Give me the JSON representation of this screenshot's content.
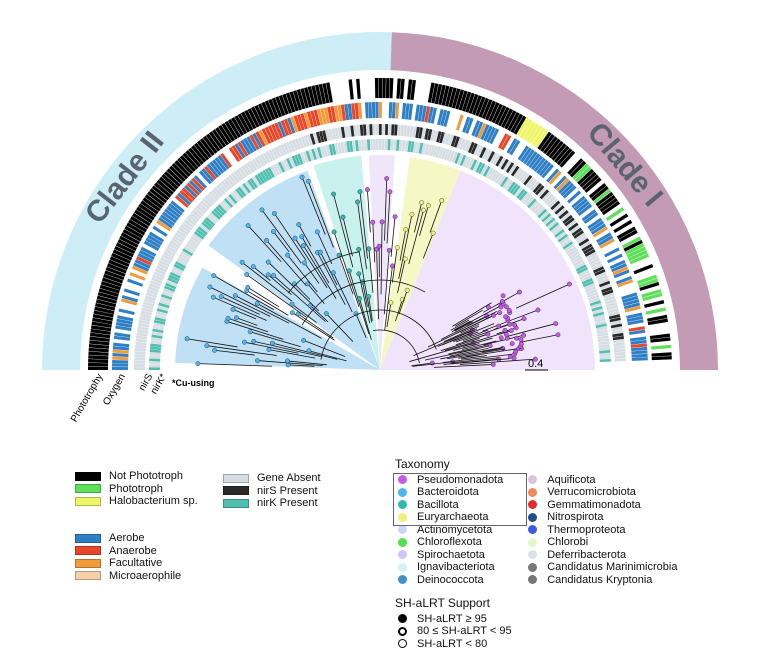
{
  "clades": [
    {
      "label": "Clade II",
      "color": "#cdeef7"
    },
    {
      "label": "Clade I",
      "color": "#c49bb4"
    }
  ],
  "ring_labels": [
    "Phototrophy",
    "Oxygen",
    "nirS",
    "nirK*"
  ],
  "note": "*Cu-using",
  "scale_bar": "0.4",
  "phototrophy_legend": [
    {
      "label": "Not Phototroph",
      "color": "#000000"
    },
    {
      "label": "Phototroph",
      "color": "#5ee05a"
    },
    {
      "label": "Halobacterium sp.",
      "color": "#eef566"
    }
  ],
  "oxygen_legend": [
    {
      "label": "Aerobe",
      "color": "#2f7fc6"
    },
    {
      "label": "Anaerobe",
      "color": "#e8472a"
    },
    {
      "label": "Facultative",
      "color": "#f39a3a"
    },
    {
      "label": "Microaerophile",
      "color": "#f7cfa6"
    }
  ],
  "gene_legend": [
    {
      "label": "Gene Absent",
      "color": "#d6dde3"
    },
    {
      "label": "nirS Present",
      "color": "#2a2a2a"
    },
    {
      "label": "nirK Present",
      "color": "#4fbfb0"
    }
  ],
  "taxonomy": {
    "title": "Taxonomy",
    "items": [
      {
        "label": "Pseudomonadota",
        "color": "#c45ae8"
      },
      {
        "label": "Bacteroidota",
        "color": "#4cb8f0"
      },
      {
        "label": "Bacillota",
        "color": "#34b8b0"
      },
      {
        "label": "Euryarchaeota",
        "color": "#eef07a"
      },
      {
        "label": "Actinomycetota",
        "color": "#c9d6f7"
      },
      {
        "label": "Chloroflexota",
        "color": "#4ee04e"
      },
      {
        "label": "Spirochaetota",
        "color": "#d3c2f7"
      },
      {
        "label": "Ignavibacteriota",
        "color": "#d2f2f7"
      },
      {
        "label": "Deinococcota",
        "color": "#3f93c4"
      },
      {
        "label": "Aquificota",
        "color": "#dcc4dc"
      },
      {
        "label": "Verrucomicrobiota",
        "color": "#f08a5a"
      },
      {
        "label": "Gemmatimonadota",
        "color": "#e82a2a"
      },
      {
        "label": "Nitrospirota",
        "color": "#1e4f8c"
      },
      {
        "label": "Thermoproteota",
        "color": "#3a5ae8"
      },
      {
        "label": "Chlorobi",
        "color": "#e6f7c8"
      },
      {
        "label": "Deferribacterota",
        "color": "#dde2e8"
      },
      {
        "label": "Candidatus Marinimicrobia",
        "color": "#777777"
      },
      {
        "label": "Candidatus Kryptonia",
        "color": "#777777"
      }
    ]
  },
  "support": {
    "title": "SH-aLRT Support",
    "items": [
      "SH-aLRT ≥ 95",
      "80 ≤ SH-aLRT < 95",
      "SH-aLRT < 80"
    ]
  }
}
